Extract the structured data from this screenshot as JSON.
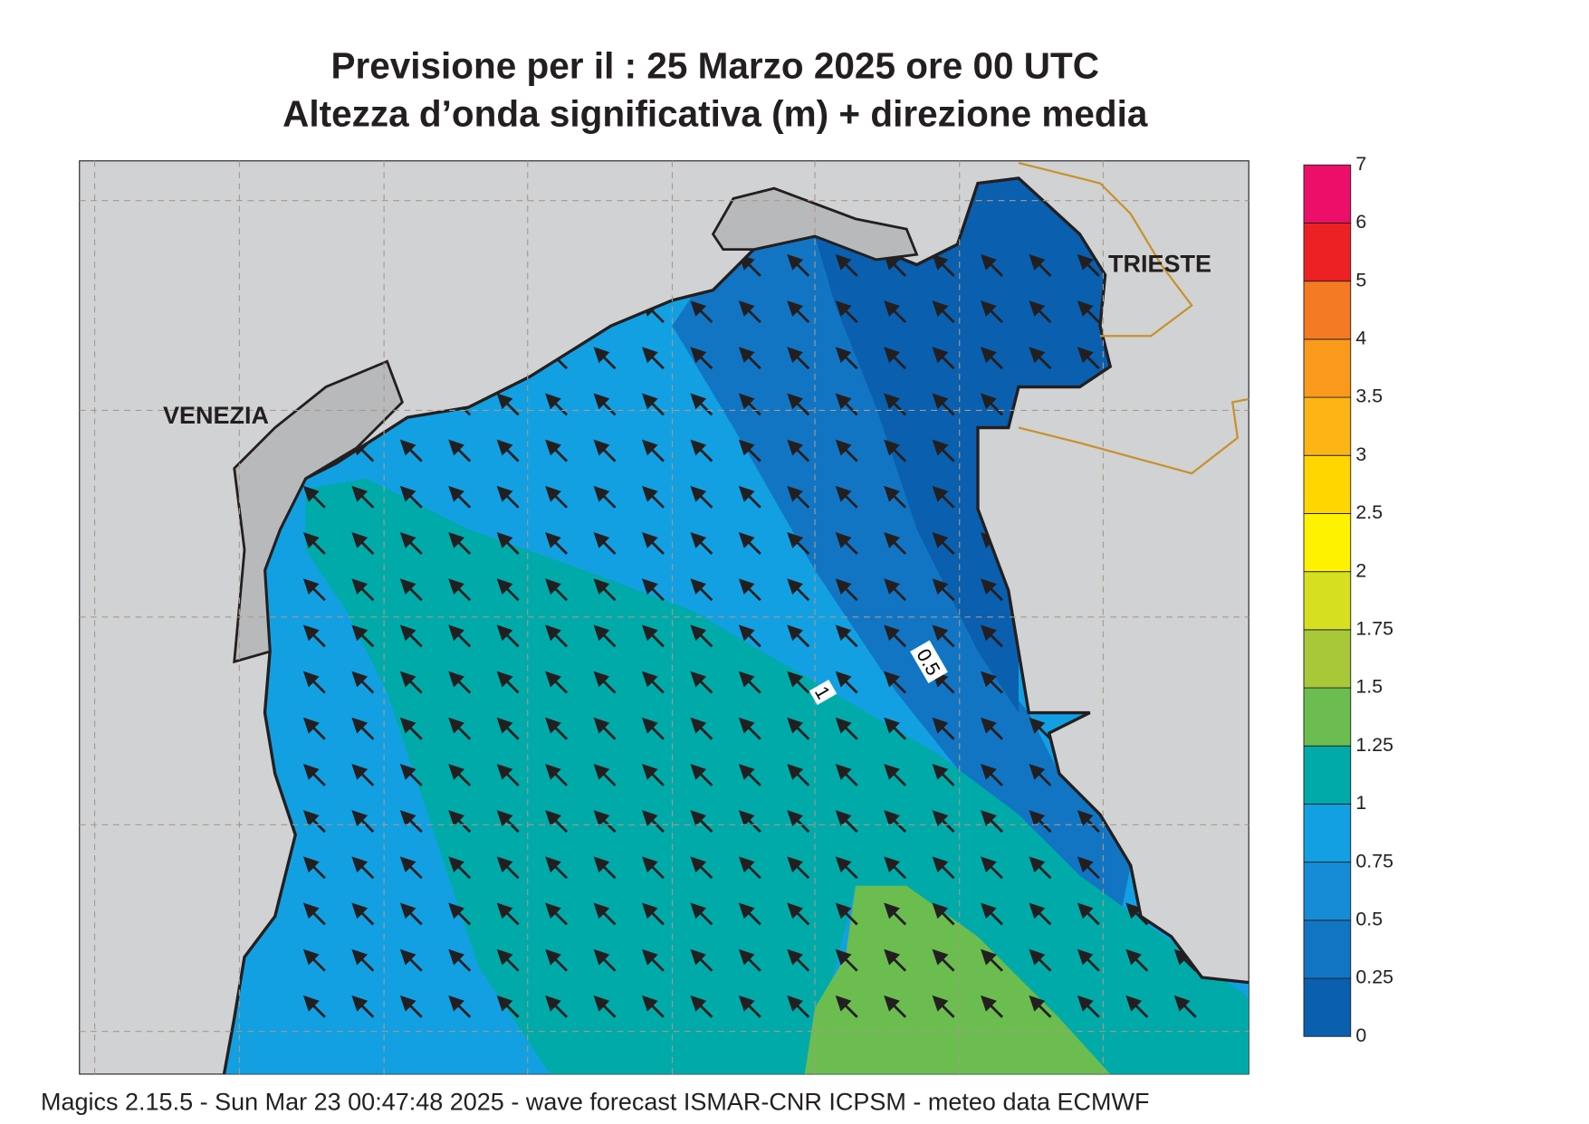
{
  "header": {
    "title": "Previsione per il  :  25   Marzo   2025   ore 00 UTC",
    "subtitle": "Altezza d’onda significativa (m) + direzione media"
  },
  "map": {
    "places": [
      "VENEZIA",
      "TRIESTE"
    ],
    "contour_labels": [
      "1",
      "0.5"
    ]
  },
  "colorbar": {
    "levels": [
      0,
      0.25,
      0.5,
      0.75,
      1,
      1.25,
      1.5,
      1.75,
      2,
      2.5,
      3,
      3.5,
      4,
      5,
      6,
      7
    ],
    "colors": [
      "#0a5fae",
      "#1275c4",
      "#168cd6",
      "#12a0e2",
      "#00aaa9",
      "#6bbd4f",
      "#a8c83a",
      "#d6e021",
      "#fff200",
      "#ffd600",
      "#fdb515",
      "#f99a1c",
      "#f47a24",
      "#ed2024",
      "#eb0f69"
    ]
  },
  "footer": "Magics 2.15.5 - Sun Mar 23 00:47:48 2025 - wave forecast  ISMAR-CNR  ICPSM - meteo data   ECMWF"
}
